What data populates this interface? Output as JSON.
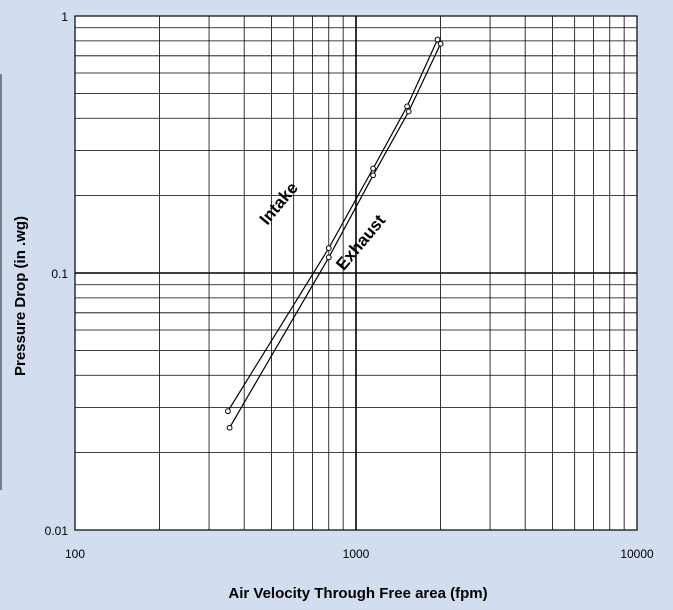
{
  "chart_data": {
    "type": "line",
    "xlabel": "Air Velocity Through Free area (fpm)",
    "ylabel": "Pressure Drop (in .wg)",
    "x_scale": "log",
    "y_scale": "log",
    "xlim": [
      100,
      10000
    ],
    "ylim": [
      0.01,
      1
    ],
    "grid": true,
    "x_ticks": [
      "100",
      "1000",
      "10000"
    ],
    "y_ticks": [
      "0.01",
      "0.1",
      "1"
    ],
    "series": [
      {
        "name": "Intake",
        "color": "#000000",
        "x": [
          350,
          800,
          1150,
          1520,
          1950
        ],
        "y": [
          0.029,
          0.125,
          0.255,
          0.445,
          0.81
        ]
      },
      {
        "name": "Exhaust",
        "color": "#000000",
        "x": [
          355,
          800,
          1150,
          1540,
          2000
        ],
        "y": [
          0.025,
          0.115,
          0.24,
          0.425,
          0.78
        ]
      }
    ]
  },
  "background_color": "#d3ddf0",
  "plot_color": "#ffffff"
}
